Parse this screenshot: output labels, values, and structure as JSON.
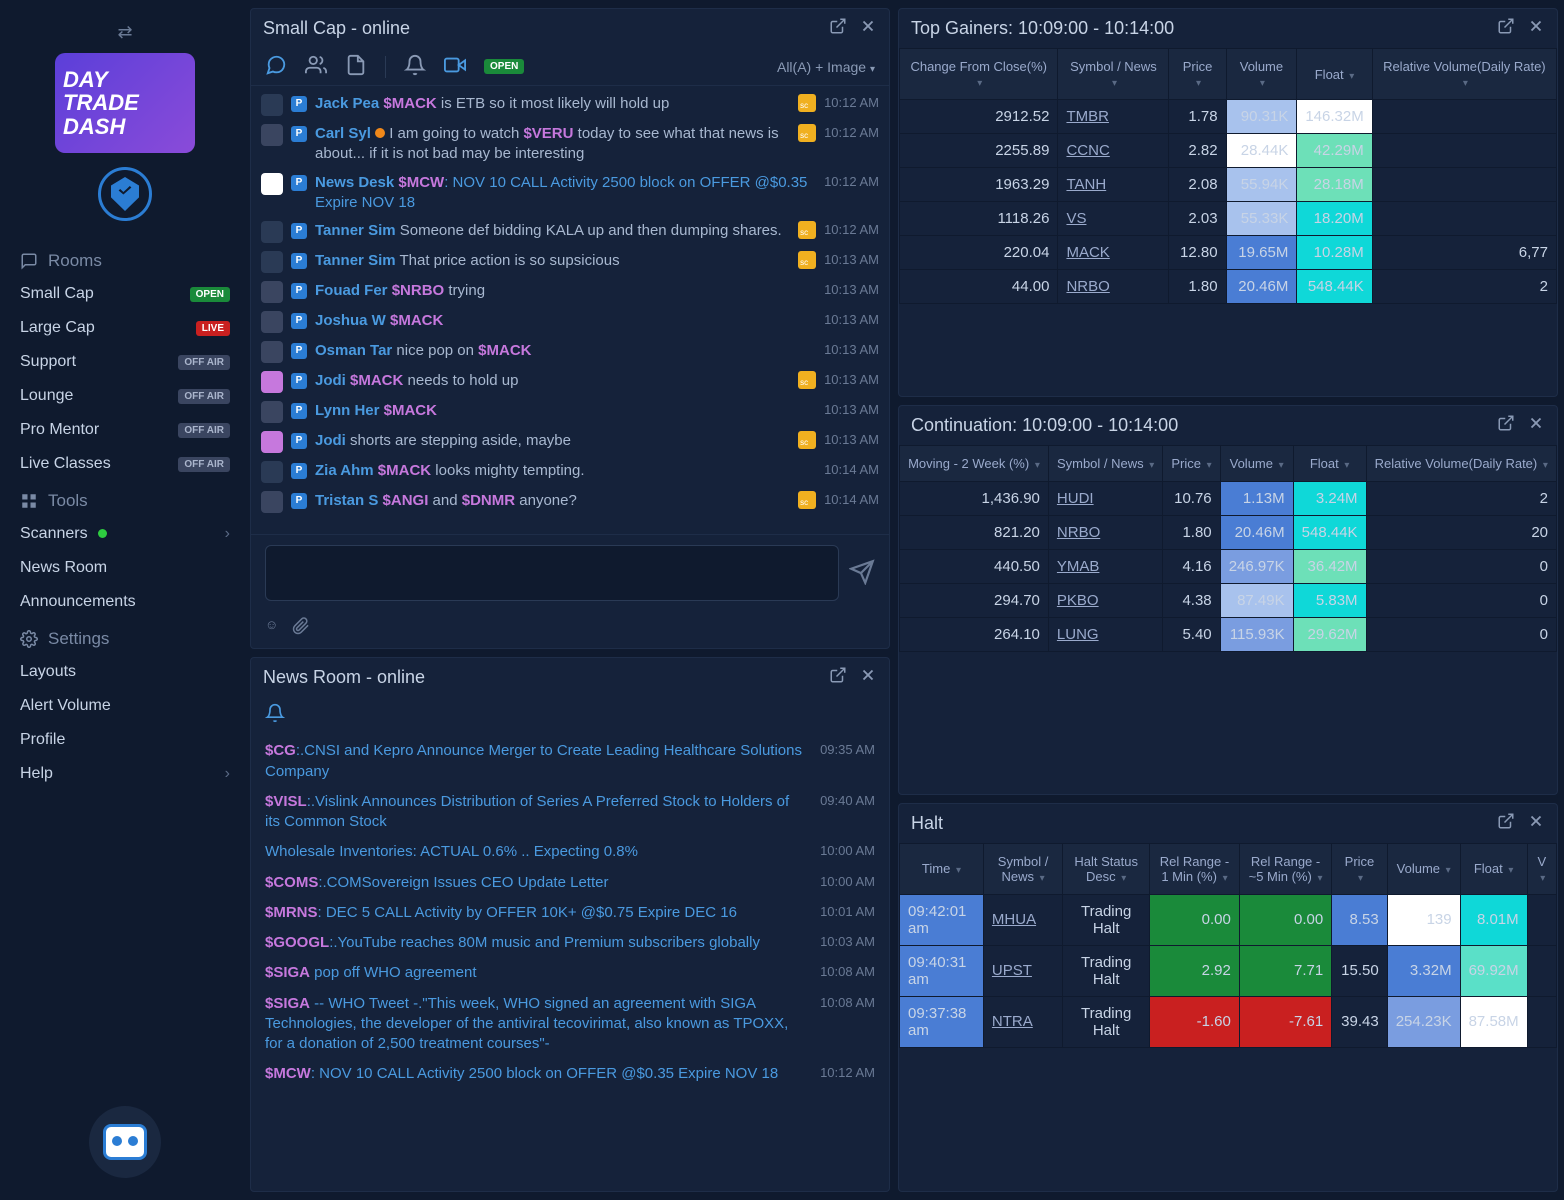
{
  "brand": {
    "line": "DAY TRADE DASH"
  },
  "sidebar": {
    "rooms_hdr": "Rooms",
    "rooms": [
      {
        "label": "Small Cap",
        "badge": "OPEN",
        "badge_cls": "badge-open"
      },
      {
        "label": "Large Cap",
        "badge": "LIVE",
        "badge_cls": "badge-live"
      },
      {
        "label": "Support",
        "badge": "OFF AIR",
        "badge_cls": "badge-offair"
      },
      {
        "label": "Lounge",
        "badge": "OFF AIR",
        "badge_cls": "badge-offair"
      },
      {
        "label": "Pro Mentor",
        "badge": "OFF AIR",
        "badge_cls": "badge-offair"
      },
      {
        "label": "Live Classes",
        "badge": "OFF AIR",
        "badge_cls": "badge-offair"
      }
    ],
    "tools_hdr": "Tools",
    "tools": [
      {
        "label": "Scanners",
        "dot": true,
        "chev": true
      },
      {
        "label": "News Room"
      },
      {
        "label": "Announcements"
      }
    ],
    "settings_hdr": "Settings",
    "settings": [
      {
        "label": "Layouts"
      },
      {
        "label": "Alert Volume"
      },
      {
        "label": "Profile"
      },
      {
        "label": "Help",
        "chev": true
      }
    ]
  },
  "chat": {
    "title": "Small Cap - online",
    "filter": "All(A) + Image",
    "open_badge": "OPEN",
    "messages": [
      {
        "name": "Jack Pea",
        "tk": "$MACK",
        "post": " is ETB so it most likely will hold up",
        "time": "10:12 AM",
        "star": true
      },
      {
        "name": "Carl Syl",
        "dot": true,
        "pre": " I am going to watch ",
        "tk": "$VERU",
        "post": " today to see what that news is about... if it is not bad may be interesting",
        "time": "10:12 AM",
        "star": true,
        "bot": true
      },
      {
        "name": "News Desk",
        "tk": "$MCW",
        "news": ": NOV 10 CALL Activity 2500 block on OFFER @$0.35 Expire NOV 18",
        "time": "10:12 AM",
        "nd": true
      },
      {
        "name": "Tanner Sim",
        "post": " Someone def bidding KALA up and then dumping shares.",
        "time": "10:12 AM",
        "star": true
      },
      {
        "name": "Tanner Sim",
        "post": " That price action is so supsicious",
        "time": "10:13 AM",
        "star": true
      },
      {
        "name": "Fouad Fer",
        "tk": "$NRBO",
        "post": " trying",
        "time": "10:13 AM",
        "bot": true
      },
      {
        "name": "Joshua W",
        "tk": "$MACK",
        "time": "10:13 AM",
        "bot": true
      },
      {
        "name": "Osman Tar",
        "pre": " nice pop on ",
        "tk": "$MACK",
        "time": "10:13 AM",
        "bot": true
      },
      {
        "name": "Jodi",
        "tk": "$MACK",
        "post": " needs to hold up",
        "time": "10:13 AM",
        "star": true,
        "rk": true
      },
      {
        "name": "Lynn Her",
        "tk": "$MACK",
        "time": "10:13 AM",
        "bot": true
      },
      {
        "name": "Jodi",
        "post": " shorts are stepping aside, maybe",
        "time": "10:13 AM",
        "star": true,
        "rk": true
      },
      {
        "name": "Zia Ahm",
        "tk": "$MACK",
        "post": " looks mighty tempting.",
        "time": "10:14 AM"
      },
      {
        "name": "Tristan S",
        "tk": "$ANGI",
        "pre": " ",
        "post": " and ",
        "tk2": "$DNMR",
        "post2": " anyone?",
        "time": "10:14 AM",
        "star": true,
        "bot": true
      }
    ]
  },
  "news": {
    "title": "News Room - online",
    "items": [
      {
        "tk": "$CG",
        "txt": ":.CNSI and Kepro Announce Merger to Create Leading Healthcare Solutions Company",
        "time": "09:35 AM"
      },
      {
        "tk": "$VISL",
        "txt": ":.Vislink Announces Distribution of Series A Preferred Stock to Holders of its Common Stock",
        "time": "09:40 AM"
      },
      {
        "plain": "Wholesale Inventories: ACTUAL 0.6% .. Expecting 0.8%",
        "time": "10:00 AM"
      },
      {
        "tk": "$COMS",
        "txt": ":.COMSovereign Issues CEO Update Letter",
        "time": "10:00 AM"
      },
      {
        "tk": "$MRNS",
        "txt": ": DEC 5 CALL Activity by OFFER 10K+ @$0.75 Expire DEC 16",
        "time": "10:01 AM"
      },
      {
        "tk": "$GOOGL",
        "txt": ":.YouTube reaches 80M music and Premium subscribers globally",
        "time": "10:03 AM"
      },
      {
        "tk": "$SIGA",
        "txt": " pop off WHO agreement",
        "time": "10:08 AM",
        "plainlink": true
      },
      {
        "tk": "$SIGA",
        "txt": " -- WHO Tweet -.\"This week, WHO signed an agreement with SIGA Technologies, the developer of the antiviral tecovirimat, also known as TPOXX, for a donation of 2,500 treatment courses\"-",
        "time": "10:08 AM"
      },
      {
        "tk": "$MCW",
        "txt": ": NOV 10 CALL Activity 2500 block on OFFER @$0.35 Expire NOV 18",
        "time": "10:12 AM"
      }
    ]
  },
  "gainers": {
    "title": "Top Gainers: 10:09:00 - 10:14:00",
    "columns": [
      "Change From Close(%)",
      "Symbol / News",
      "Price",
      "Volume",
      "Float",
      "Relative Volume(Daily Rate)"
    ],
    "rows": [
      {
        "chg": "2912.52",
        "sym": "TMBR",
        "price": "1.78",
        "vol": "90.31K",
        "vol_cls": "cell-blue2",
        "float": "146.32M",
        "float_cls": "cell-white",
        "rv": ""
      },
      {
        "chg": "2255.89",
        "sym": "CCNC",
        "price": "2.82",
        "vol": "28.44K",
        "vol_cls": "cell-white",
        "float": "42.29M",
        "float_cls": "cell-teal",
        "rv": ""
      },
      {
        "chg": "1963.29",
        "sym": "TANH",
        "price": "2.08",
        "vol": "55.94K",
        "vol_cls": "cell-blue2",
        "float": "28.18M",
        "float_cls": "cell-teal",
        "rv": ""
      },
      {
        "chg": "1118.26",
        "sym": "VS",
        "price": "2.03",
        "vol": "55.33K",
        "vol_cls": "cell-blue2",
        "float": "18.20M",
        "float_cls": "cell-cyan",
        "rv": ""
      },
      {
        "chg": "220.04",
        "sym": "MACK",
        "price": "12.80",
        "vol": "19.65M",
        "vol_cls": "cell-blue3",
        "float": "10.28M",
        "float_cls": "cell-cyan",
        "rv": "6,77"
      },
      {
        "chg": "44.00",
        "sym": "NRBO",
        "price": "1.80",
        "vol": "20.46M",
        "vol_cls": "cell-blue3",
        "float": "548.44K",
        "float_cls": "cell-cyan",
        "rv": "2"
      }
    ]
  },
  "continuation": {
    "title": "Continuation: 10:09:00 - 10:14:00",
    "columns": [
      "Moving - 2 Week (%)",
      "Symbol / News",
      "Price",
      "Volume",
      "Float",
      "Relative Volume(Daily Rate)"
    ],
    "rows": [
      {
        "c0": "1,436.90",
        "sym": "HUDI",
        "price": "10.76",
        "vol": "1.13M",
        "vol_cls": "cell-blue3",
        "float": "3.24M",
        "float_cls": "cell-cyan",
        "rv": "2"
      },
      {
        "c0": "821.20",
        "sym": "NRBO",
        "price": "1.80",
        "vol": "20.46M",
        "vol_cls": "cell-blue3",
        "float": "548.44K",
        "float_cls": "cell-cyan",
        "rv": "20"
      },
      {
        "c0": "440.50",
        "sym": "YMAB",
        "price": "4.16",
        "vol": "246.97K",
        "vol_cls": "cell-blue1",
        "float": "36.42M",
        "float_cls": "cell-teal",
        "rv": "0"
      },
      {
        "c0": "294.70",
        "sym": "PKBO",
        "price": "4.38",
        "vol": "87.49K",
        "vol_cls": "cell-blue2",
        "float": "5.83M",
        "float_cls": "cell-cyan",
        "rv": "0"
      },
      {
        "c0": "264.10",
        "sym": "LUNG",
        "price": "5.40",
        "vol": "115.93K",
        "vol_cls": "cell-blue1",
        "float": "29.62M",
        "float_cls": "cell-teal",
        "rv": "0"
      }
    ]
  },
  "halt": {
    "title": "Halt",
    "columns": [
      "Time",
      "Symbol / News",
      "Halt Status Desc",
      "Rel Range - 1 Min (%)",
      "Rel Range - ~5 Min (%)",
      "Price",
      "Volume",
      "Float",
      "V"
    ],
    "rows": [
      {
        "time": "09:42:01 am",
        "sym": "MHUA",
        "desc": "Trading Halt",
        "r1": "0.00",
        "r1_cls": "cell-green2",
        "r5": "0.00",
        "r5_cls": "cell-green2",
        "price": "8.53",
        "price_cls": "cell-blue3",
        "vol": "139",
        "vol_cls": "cell-white",
        "float": "8.01M",
        "float_cls": "cell-cyan"
      },
      {
        "time": "09:40:31 am",
        "sym": "UPST",
        "desc": "Trading Halt",
        "r1": "2.92",
        "r1_cls": "cell-green2",
        "r5": "7.71",
        "r5_cls": "cell-green2",
        "price": "15.50",
        "vol": "3.32M",
        "vol_cls": "cell-blue3",
        "float": "69.92M",
        "float_cls": "cell-mint"
      },
      {
        "time": "09:37:38 am",
        "sym": "NTRA",
        "desc": "Trading Halt",
        "r1": "-1.60",
        "r1_cls": "cell-red",
        "r5": "-7.61",
        "r5_cls": "cell-red",
        "price": "39.43",
        "vol": "254.23K",
        "vol_cls": "cell-blue1",
        "float": "87.58M",
        "float_cls": "cell-white"
      }
    ]
  },
  "colors": {
    "bg": "#0f1a2e",
    "panel": "#15223a",
    "border": "#1e2d48",
    "accent": "#4a9ae0",
    "ticker": "#c678dd",
    "text": "#a8b8d0"
  }
}
